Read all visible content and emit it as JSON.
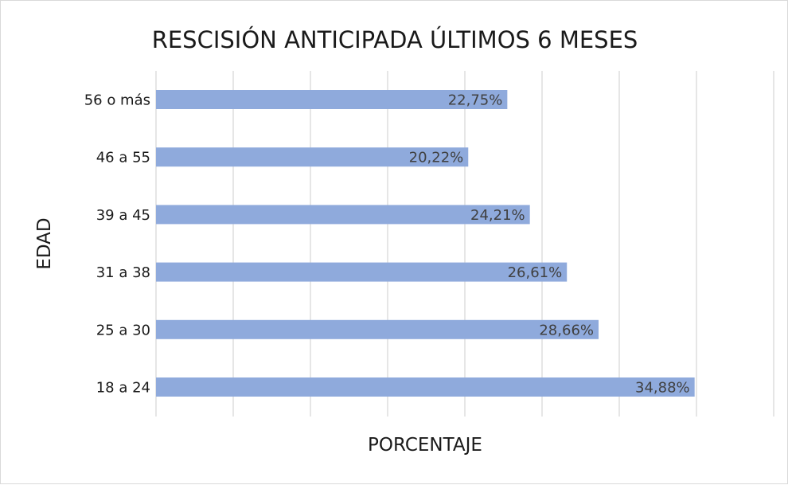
{
  "chart_data": {
    "type": "bar",
    "orientation": "horizontal",
    "title": "RESCISIÓN ANTICIPADA ÚLTIMOS 6 MESES",
    "xlabel": "PORCENTAJE",
    "ylabel": "EDAD",
    "categories": [
      "56 o más",
      "46 a 55",
      "39 a 45",
      "31 a 38",
      "25 a 30",
      "18 a 24"
    ],
    "values": [
      22.75,
      20.22,
      24.21,
      26.61,
      28.66,
      34.88
    ],
    "data_labels": [
      "22,75%",
      "20,22%",
      "24,21%",
      "26,61%",
      "28,66%",
      "34,88%"
    ],
    "xlim": [
      0,
      40
    ],
    "grid": true,
    "legend": "none",
    "bar_color": "#8faadc"
  }
}
